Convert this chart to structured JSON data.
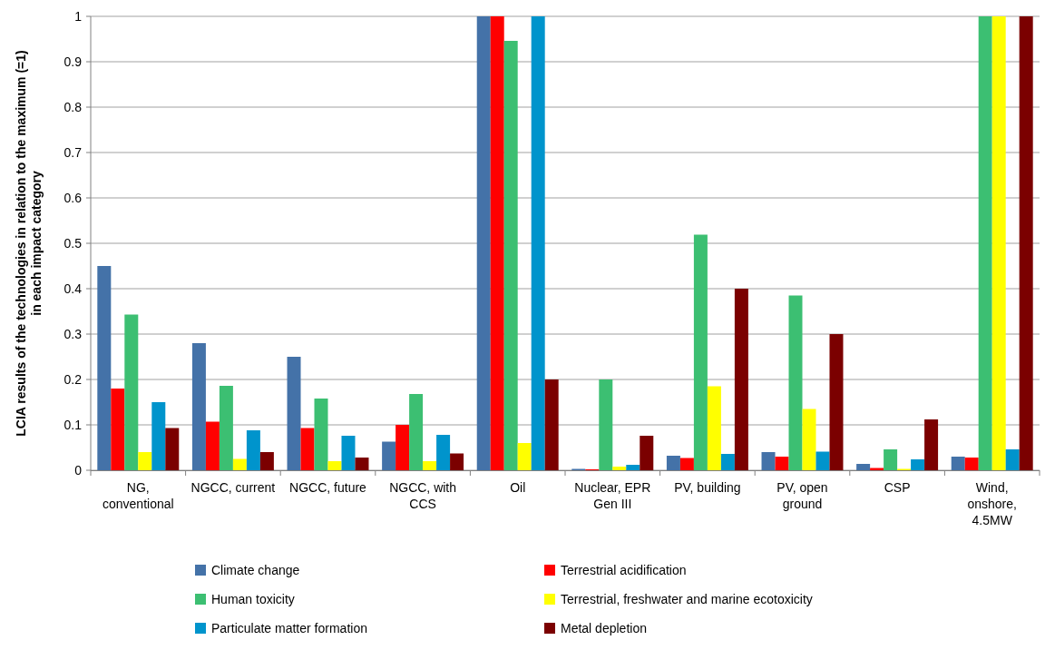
{
  "chart_data": {
    "type": "bar",
    "ylabel": "LCIA results of the technologies in relation to the maximum (=1)\nin each impact category",
    "categories": [
      "NG, conventional",
      "NGCC, current",
      "NGCC, future",
      "NGCC, with CCS",
      "Oil",
      "Nuclear, EPR Gen III",
      "PV, building",
      "PV, open ground",
      "CSP",
      "Wind, onshore, 4.5MW"
    ],
    "series": [
      {
        "name": "Climate change",
        "color": "#4472a8",
        "values": [
          0.45,
          0.28,
          0.25,
          0.063,
          1,
          0.003,
          0.032,
          0.04,
          0.014,
          0.03
        ]
      },
      {
        "name": "Terrestrial acidification",
        "color": "#ff0000",
        "values": [
          0.18,
          0.107,
          0.093,
          0.1,
          1,
          0.002,
          0.027,
          0.03,
          0.005,
          0.028
        ]
      },
      {
        "name": "Human toxicity",
        "color": "#3cbf72",
        "values": [
          0.343,
          0.186,
          0.158,
          0.168,
          0.946,
          0.2,
          0.519,
          0.385,
          0.046,
          1
        ]
      },
      {
        "name": "Terrestrial, freshwater and marine ecotoxicity",
        "color": "#ffff00",
        "values": [
          0.04,
          0.025,
          0.02,
          0.02,
          0.06,
          0.008,
          0.185,
          0.135,
          0.003,
          1
        ]
      },
      {
        "name": "Particulate matter formation",
        "color": "#0094cc",
        "values": [
          0.15,
          0.088,
          0.076,
          0.078,
          1,
          0.012,
          0.036,
          0.041,
          0.024,
          0.046
        ]
      },
      {
        "name": "Metal depletion",
        "color": "#7b0000",
        "values": [
          0.093,
          0.04,
          0.028,
          0.037,
          0.2,
          0.076,
          0.4,
          0.3,
          0.112,
          1
        ]
      }
    ],
    "ylim": [
      0,
      1
    ],
    "yticks": [
      0,
      0.1,
      0.2,
      0.3,
      0.4,
      0.5,
      0.6,
      0.7,
      0.8,
      0.9,
      1
    ],
    "grid": "y",
    "legend": "bottom"
  }
}
